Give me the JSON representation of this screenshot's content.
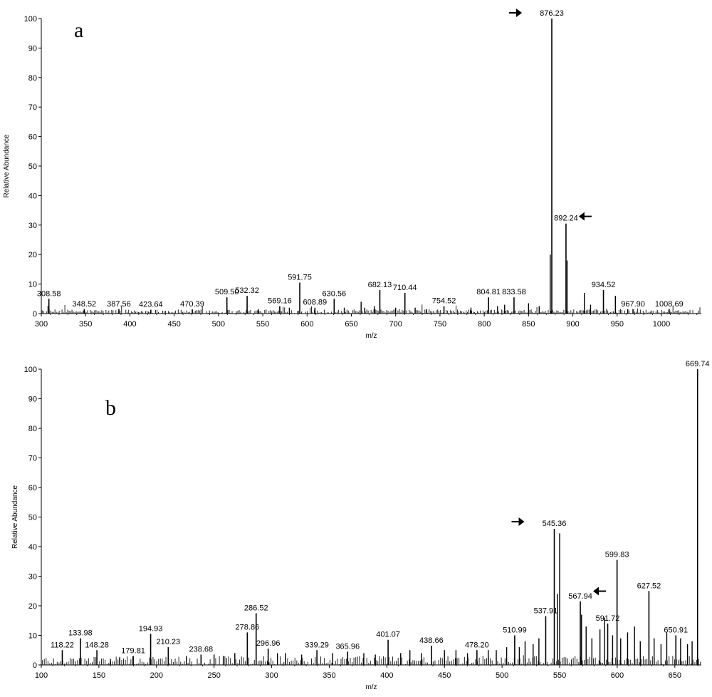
{
  "chart_data": [
    {
      "type": "bar",
      "panel_letter": "a",
      "xlabel": "m/z",
      "ylabel": "Relative Abundance",
      "xlim": [
        300,
        1045
      ],
      "ylim": [
        0,
        100
      ],
      "xticks": [
        300,
        350,
        400,
        450,
        500,
        550,
        600,
        650,
        700,
        750,
        800,
        850,
        900,
        950,
        1000
      ],
      "yticks": [
        0,
        10,
        20,
        30,
        40,
        50,
        60,
        70,
        80,
        90,
        100
      ],
      "labeled_peaks": [
        {
          "x": 308.58,
          "y": 5.0,
          "label": "308.58"
        },
        {
          "x": 348.52,
          "y": 1.5,
          "label": "348.52"
        },
        {
          "x": 387.56,
          "y": 1.5,
          "label": "387.56"
        },
        {
          "x": 423.64,
          "y": 1.3,
          "label": "423.64"
        },
        {
          "x": 470.39,
          "y": 1.4,
          "label": "470.39"
        },
        {
          "x": 509.5,
          "y": 5.5,
          "label": "509.50"
        },
        {
          "x": 532.32,
          "y": 6.0,
          "label": "532.32"
        },
        {
          "x": 569.16,
          "y": 2.5,
          "label": "569.16"
        },
        {
          "x": 591.75,
          "y": 10.5,
          "label": "591.75"
        },
        {
          "x": 608.89,
          "y": 2.0,
          "label": "608.89"
        },
        {
          "x": 630.56,
          "y": 5.0,
          "label": "630.56"
        },
        {
          "x": 682.13,
          "y": 8.0,
          "label": "682.13"
        },
        {
          "x": 710.44,
          "y": 7.0,
          "label": "710.44"
        },
        {
          "x": 754.52,
          "y": 2.5,
          "label": "754.52"
        },
        {
          "x": 804.81,
          "y": 5.5,
          "label": "804.81"
        },
        {
          "x": 833.58,
          "y": 5.5,
          "label": "833.58"
        },
        {
          "x": 876.23,
          "y": 100,
          "label": "876.23"
        },
        {
          "x": 892.24,
          "y": 30.5,
          "label": "892.24"
        },
        {
          "x": 934.52,
          "y": 8.0,
          "label": "934.52"
        },
        {
          "x": 967.9,
          "y": 1.5,
          "label": "967.90"
        },
        {
          "x": 1008.69,
          "y": 1.5,
          "label": "1008.69"
        }
      ],
      "other_peaks": [
        {
          "x": 874.5,
          "y": 20
        },
        {
          "x": 893.5,
          "y": 18
        },
        {
          "x": 913,
          "y": 7
        },
        {
          "x": 948,
          "y": 6
        },
        {
          "x": 850,
          "y": 3.5
        },
        {
          "x": 823,
          "y": 3
        },
        {
          "x": 815,
          "y": 2.5
        },
        {
          "x": 661,
          "y": 4
        },
        {
          "x": 665,
          "y": 2
        },
        {
          "x": 676,
          "y": 2.5
        },
        {
          "x": 700,
          "y": 2
        },
        {
          "x": 722,
          "y": 2
        },
        {
          "x": 735,
          "y": 1.5
        },
        {
          "x": 785,
          "y": 2
        },
        {
          "x": 862,
          "y": 2.5
        },
        {
          "x": 920,
          "y": 3
        },
        {
          "x": 962,
          "y": 1.5
        },
        {
          "x": 580,
          "y": 2
        },
        {
          "x": 545,
          "y": 1.5
        },
        {
          "x": 642,
          "y": 2
        }
      ],
      "arrows": [
        {
          "x": 876.23,
          "y": 100,
          "side": "left"
        },
        {
          "x": 892.24,
          "y": 31,
          "side": "right"
        }
      ]
    },
    {
      "type": "bar",
      "panel_letter": "b",
      "xlabel": "m/z",
      "ylabel": "Relative Abundance",
      "xlim": [
        100,
        673
      ],
      "ylim": [
        0,
        100
      ],
      "xticks": [
        100,
        150,
        200,
        250,
        300,
        350,
        400,
        450,
        500,
        550,
        600,
        650
      ],
      "yticks": [
        0,
        10,
        20,
        30,
        40,
        50,
        60,
        70,
        80,
        90,
        100
      ],
      "labeled_peaks": [
        {
          "x": 118.22,
          "y": 5.0,
          "label": "118.22"
        },
        {
          "x": 133.98,
          "y": 9.0,
          "label": "133.98"
        },
        {
          "x": 148.28,
          "y": 5.0,
          "label": "148.28"
        },
        {
          "x": 179.81,
          "y": 3.0,
          "label": "179.81"
        },
        {
          "x": 194.93,
          "y": 10.5,
          "label": "194.93"
        },
        {
          "x": 210.23,
          "y": 6.0,
          "label": "210.23"
        },
        {
          "x": 238.68,
          "y": 3.5,
          "label": "238.68"
        },
        {
          "x": 278.86,
          "y": 11.0,
          "label": "278.86"
        },
        {
          "x": 286.52,
          "y": 17.5,
          "label": "286.52"
        },
        {
          "x": 296.96,
          "y": 5.5,
          "label": "296.96"
        },
        {
          "x": 339.29,
          "y": 5.0,
          "label": "339.29"
        },
        {
          "x": 365.96,
          "y": 4.5,
          "label": "365.96"
        },
        {
          "x": 401.07,
          "y": 8.5,
          "label": "401.07"
        },
        {
          "x": 438.66,
          "y": 6.5,
          "label": "438.66"
        },
        {
          "x": 478.2,
          "y": 5.0,
          "label": "478.20"
        },
        {
          "x": 510.99,
          "y": 10.0,
          "label": "510.99"
        },
        {
          "x": 537.91,
          "y": 16.5,
          "label": "537.91"
        },
        {
          "x": 545.36,
          "y": 46.0,
          "label": "545.36"
        },
        {
          "x": 567.94,
          "y": 21.5,
          "label": "567.94"
        },
        {
          "x": 591.72,
          "y": 14.0,
          "label": "591.72"
        },
        {
          "x": 599.83,
          "y": 35.5,
          "label": "599.83"
        },
        {
          "x": 627.52,
          "y": 25.0,
          "label": "627.52"
        },
        {
          "x": 650.91,
          "y": 10.0,
          "label": "650.91"
        },
        {
          "x": 669.74,
          "y": 100,
          "label": "669.74"
        }
      ],
      "other_peaks": [
        {
          "x": 550,
          "y": 44.5
        },
        {
          "x": 548,
          "y": 24
        },
        {
          "x": 569,
          "y": 17
        },
        {
          "x": 573,
          "y": 13
        },
        {
          "x": 578,
          "y": 9
        },
        {
          "x": 585,
          "y": 12
        },
        {
          "x": 589,
          "y": 16
        },
        {
          "x": 596,
          "y": 10
        },
        {
          "x": 603,
          "y": 9
        },
        {
          "x": 609,
          "y": 11
        },
        {
          "x": 615,
          "y": 13
        },
        {
          "x": 620,
          "y": 8
        },
        {
          "x": 632,
          "y": 9
        },
        {
          "x": 638,
          "y": 7
        },
        {
          "x": 643,
          "y": 11
        },
        {
          "x": 655,
          "y": 9
        },
        {
          "x": 661,
          "y": 7
        },
        {
          "x": 665,
          "y": 8
        },
        {
          "x": 532,
          "y": 9
        },
        {
          "x": 527,
          "y": 7
        },
        {
          "x": 520,
          "y": 8
        },
        {
          "x": 515,
          "y": 6
        },
        {
          "x": 504,
          "y": 6
        },
        {
          "x": 495,
          "y": 5
        },
        {
          "x": 488,
          "y": 5
        },
        {
          "x": 470,
          "y": 4
        },
        {
          "x": 460,
          "y": 5
        },
        {
          "x": 450,
          "y": 5
        },
        {
          "x": 430,
          "y": 4
        },
        {
          "x": 420,
          "y": 5
        },
        {
          "x": 412,
          "y": 4
        },
        {
          "x": 390,
          "y": 3.5
        },
        {
          "x": 380,
          "y": 4
        },
        {
          "x": 353,
          "y": 4
        },
        {
          "x": 326,
          "y": 3.5
        },
        {
          "x": 312,
          "y": 4
        },
        {
          "x": 305,
          "y": 4
        },
        {
          "x": 268,
          "y": 4
        },
        {
          "x": 258,
          "y": 3
        },
        {
          "x": 250,
          "y": 3.5
        },
        {
          "x": 226,
          "y": 3
        },
        {
          "x": 168,
          "y": 2.5
        },
        {
          "x": 160,
          "y": 2
        }
      ],
      "arrows": [
        {
          "x": 545.36,
          "y": 46.5,
          "side": "left"
        },
        {
          "x": 567.94,
          "y": 23,
          "side": "right"
        }
      ]
    }
  ]
}
